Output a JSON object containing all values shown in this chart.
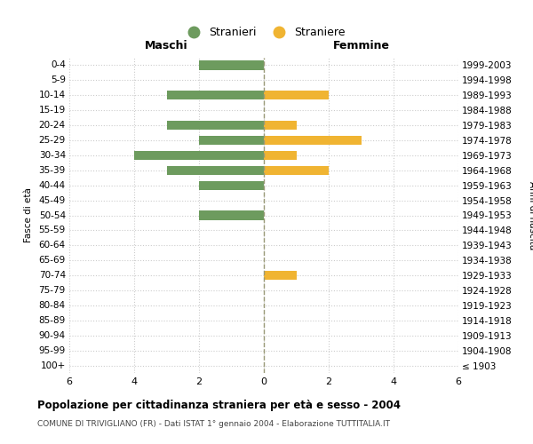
{
  "age_groups": [
    "100+",
    "95-99",
    "90-94",
    "85-89",
    "80-84",
    "75-79",
    "70-74",
    "65-69",
    "60-64",
    "55-59",
    "50-54",
    "45-49",
    "40-44",
    "35-39",
    "30-34",
    "25-29",
    "20-24",
    "15-19",
    "10-14",
    "5-9",
    "0-4"
  ],
  "birth_years": [
    "≤ 1903",
    "1904-1908",
    "1909-1913",
    "1914-1918",
    "1919-1923",
    "1924-1928",
    "1929-1933",
    "1934-1938",
    "1939-1943",
    "1944-1948",
    "1949-1953",
    "1954-1958",
    "1959-1963",
    "1964-1968",
    "1969-1973",
    "1974-1978",
    "1979-1983",
    "1984-1988",
    "1989-1993",
    "1994-1998",
    "1999-2003"
  ],
  "maschi": [
    0,
    0,
    0,
    0,
    0,
    0,
    0,
    0,
    0,
    0,
    2,
    0,
    2,
    3,
    4,
    2,
    3,
    0,
    3,
    0,
    2
  ],
  "femmine": [
    0,
    0,
    0,
    0,
    0,
    0,
    1,
    0,
    0,
    0,
    0,
    0,
    0,
    2,
    1,
    3,
    1,
    0,
    2,
    0,
    0
  ],
  "color_maschi": "#6d9b5e",
  "color_femmine": "#f0b432",
  "xlim": 6,
  "title": "Popolazione per cittadinanza straniera per età e sesso - 2004",
  "subtitle": "COMUNE DI TRIVIGLIANO (FR) - Dati ISTAT 1° gennaio 2004 - Elaborazione TUTTITALIA.IT",
  "ylabel_left": "Fasce di età",
  "ylabel_right": "Anni di nascita",
  "xlabel_maschi": "Maschi",
  "xlabel_femmine": "Femmine",
  "legend_stranieri": "Stranieri",
  "legend_straniere": "Straniere",
  "bg_color": "#ffffff",
  "grid_color": "#cccccc",
  "center_line_color": "#999977"
}
